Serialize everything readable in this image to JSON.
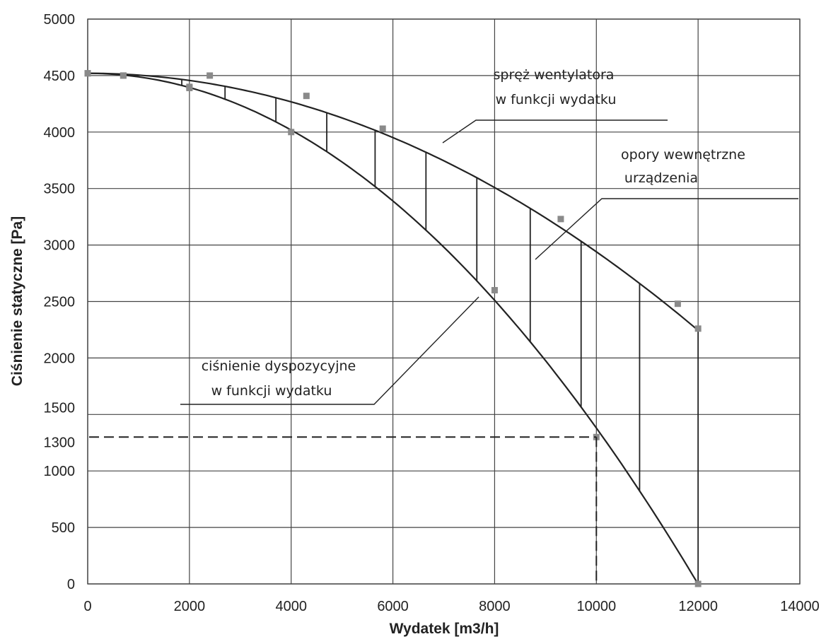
{
  "chart_data": {
    "type": "line",
    "title": "",
    "xlabel": "Wydatek [m3/h]",
    "ylabel": "Ciśnienie statyczne [Pa]",
    "xlim": [
      0,
      14000
    ],
    "ylim": [
      0,
      5000
    ],
    "x_ticks": [
      0,
      2000,
      4000,
      6000,
      8000,
      10000,
      12000,
      14000
    ],
    "y_ticks": [
      0,
      500,
      1000,
      1300,
      1500,
      2000,
      2500,
      3000,
      3500,
      4000,
      4500,
      5000
    ],
    "grid": true,
    "series": [
      {
        "x": [
          0,
          700,
          2000,
          2400,
          4300,
          5800,
          9300,
          11600,
          12000
        ],
        "y": [
          4520,
          4500,
          4400,
          4500,
          4320,
          4030,
          3230,
          2480,
          2260
        ],
        "color": "#222222"
      },
      {
        "x": [
          0,
          700,
          2000,
          4000,
          8000,
          10000,
          12000
        ],
        "y": [
          4520,
          4500,
          4390,
          4000,
          2600,
          1300,
          0
        ],
        "color": "#222222"
      }
    ],
    "hatch_x": [
      1850,
      2700,
      3700,
      4700,
      5650,
      6650,
      7650,
      8700,
      9700,
      10850,
      12000
    ],
    "operating_point": {
      "x": 10000,
      "y": 1300
    },
    "annotations": [
      {
        "lines": [
          "spręż wentylatora",
          "w funkcji wydatku"
        ]
      },
      {
        "lines": [
          "opory wewnętrzne",
          "urządzenia"
        ]
      },
      {
        "lines": [
          "ciśnienie dyspozycyjne",
          "w funkcji wydatku"
        ]
      }
    ],
    "marker_color": "#8a8a8a"
  }
}
